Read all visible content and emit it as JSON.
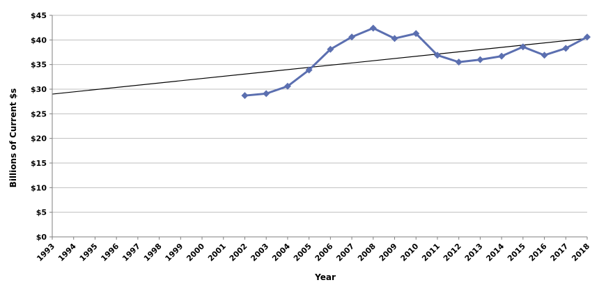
{
  "chart_data": {
    "type": "line",
    "title": "",
    "xlabel": "Year",
    "ylabel": "Billions of Current $s",
    "x": [
      "1993",
      "1994",
      "1995",
      "1996",
      "1997",
      "1998",
      "1999",
      "2000",
      "2001",
      "2002",
      "2003",
      "2004",
      "2005",
      "2006",
      "2007",
      "2008",
      "2009",
      "2010",
      "2011",
      "2012",
      "2013",
      "2014",
      "2015",
      "2016",
      "2017",
      "2018"
    ],
    "ylim": [
      0,
      45
    ],
    "yticks": [
      0,
      5,
      10,
      15,
      20,
      25,
      30,
      35,
      40,
      45
    ],
    "ytick_labels": [
      "$0",
      "$5",
      "$10",
      "$15",
      "$20",
      "$25",
      "$30",
      "$35",
      "$40",
      "$45"
    ],
    "grid": "horizontal",
    "legend": "none",
    "series": [
      {
        "color": "#5b6fb0",
        "marker": "diamond",
        "x": [
          "2002",
          "2003",
          "2004",
          "2005",
          "2006",
          "2007",
          "2008",
          "2009",
          "2010",
          "2011",
          "2012",
          "2013",
          "2014",
          "2015",
          "2016",
          "2017",
          "2018"
        ],
        "values": [
          28.7,
          29.1,
          30.6,
          33.9,
          38.1,
          40.6,
          42.4,
          40.3,
          41.3,
          36.9,
          35.5,
          36.0,
          36.7,
          38.6,
          36.9,
          38.3,
          40.6
        ]
      }
    ],
    "trendline": {
      "type": "linear",
      "color": "#000000",
      "start": {
        "x": "1993",
        "value": 29.0
      },
      "end": {
        "x": "2018",
        "value": 40.3
      }
    }
  }
}
